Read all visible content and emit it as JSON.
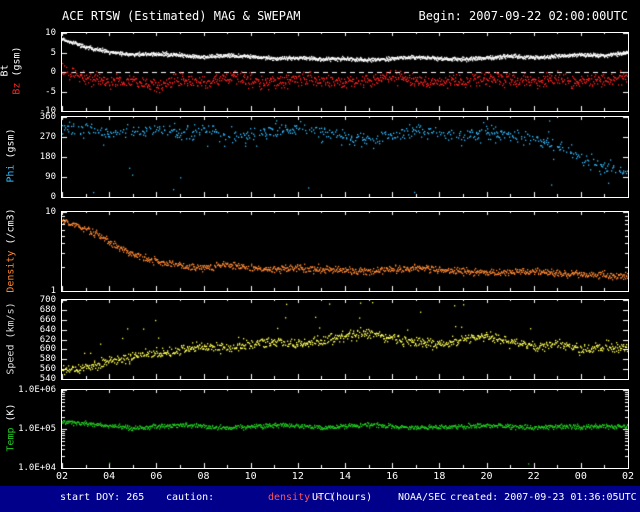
{
  "header": {
    "title": "ACE RTSW (Estimated) MAG & SWEPAM",
    "begin_label": "Begin: 2007-09-22 02:00:00UTC"
  },
  "footer": {
    "start_doy": "start DOY: 265",
    "caution_label": "caution:",
    "caution_value": "density < 1",
    "xaxis_title": "UTC(hours)",
    "agency": "NOAA/SEC",
    "created": "created: 2007-09-23 01:36:05UTC"
  },
  "colors": {
    "background": "#000000",
    "frame": "#ffffff",
    "footer_bar": "#00008b",
    "caution_text": "#ff5555",
    "bt": "#ffffff",
    "bz": "#ff2222",
    "phi": "#33bbff",
    "density": "#ff8833",
    "speed": "#ffff55",
    "temp": "#22cc22"
  },
  "chart_data": {
    "type": "scatter",
    "title": "ACE RTSW (Estimated) MAG & SWEPAM",
    "subtitle": "Begin: 2007-09-22 02:00:00UTC",
    "legend_position": "left-axis",
    "grid": false,
    "x": {
      "label": "UTC(hours)",
      "start_hour": 2,
      "end_hour": 26,
      "sample_step_hours": 1,
      "tick_labels": [
        "02",
        "04",
        "06",
        "08",
        "10",
        "12",
        "14",
        "16",
        "18",
        "20",
        "22",
        "00",
        "02"
      ]
    },
    "panels": [
      {
        "id": "mag",
        "label_lines": [
          [
            {
              "text": "Bt",
              "color": "#ffffff"
            }
          ],
          [
            {
              "text": "Bz",
              "color": "#ff2222"
            },
            {
              "text": " (gsm)",
              "color": "#ffffff"
            }
          ]
        ],
        "scale": "linear",
        "ylim": [
          -10,
          10
        ],
        "zero_line": true,
        "yticks": [
          {
            "v": 10,
            "label": "10"
          },
          {
            "v": 5,
            "label": "5"
          },
          {
            "v": 0,
            "label": "0"
          },
          {
            "v": -5,
            "label": "-5"
          },
          {
            "v": -10,
            "label": "-10"
          }
        ],
        "series": [
          {
            "name": "Bz",
            "color": "#ff2222",
            "jitter": 1.7,
            "density": 2,
            "fill": 0.9,
            "values": [
              0.5,
              -1.5,
              -2.5,
              -2.0,
              -3.0,
              -2.0,
              -2.5,
              -1.5,
              -2.0,
              -2.8,
              -1.5,
              -2.2,
              -2.6,
              -2.0,
              -1.2,
              -2.0,
              -2.6,
              -2.2,
              -1.6,
              -2.0,
              -2.2,
              -1.6,
              -2.4,
              -2.0,
              -1.2
            ]
          },
          {
            "name": "Bt",
            "color": "#ffffff",
            "jitter": 0.5,
            "density": 3,
            "fill": 1,
            "values": [
              8.5,
              6.5,
              5.2,
              4.6,
              4.8,
              4.4,
              4.0,
              4.4,
              4.0,
              3.6,
              3.8,
              3.4,
              3.6,
              3.2,
              3.6,
              4.0,
              3.6,
              3.4,
              3.8,
              4.2,
              3.8,
              4.2,
              4.6,
              4.4,
              5.2
            ]
          }
        ]
      },
      {
        "id": "phi",
        "label_lines": [
          [
            {
              "text": "Phi",
              "color": "#33bbff"
            },
            {
              "text": " (gsm)",
              "color": "#ffffff"
            }
          ]
        ],
        "scale": "linear",
        "ylim": [
          0,
          360
        ],
        "yticks": [
          {
            "v": 360,
            "label": "360"
          },
          {
            "v": 270,
            "label": "270"
          },
          {
            "v": 180,
            "label": "180"
          },
          {
            "v": 90,
            "label": "90"
          },
          {
            "v": 0,
            "label": "0"
          }
        ],
        "series": [
          {
            "name": "Phi",
            "color": "#33bbff",
            "jitter": 32,
            "density": 2,
            "fill": 0.55,
            "outlier_uniform": 0.04,
            "values": [
              315,
              305,
              290,
              298,
              306,
              292,
              300,
              278,
              288,
              300,
              308,
              288,
              272,
              258,
              282,
              300,
              290,
              272,
              295,
              282,
              262,
              232,
              175,
              135,
              120
            ]
          }
        ]
      },
      {
        "id": "density",
        "label_lines": [
          [
            {
              "text": "Density",
              "color": "#ff8833"
            },
            {
              "text": " (/cm3)",
              "color": "#ffffff"
            }
          ]
        ],
        "scale": "log",
        "ylim": [
          1,
          10
        ],
        "yticks": [
          {
            "v": 10,
            "label": "10"
          },
          {
            "v": 1,
            "label": "1"
          }
        ],
        "series": [
          {
            "name": "Density",
            "color": "#ff8833",
            "jitter_dex": 0.045,
            "density": 2,
            "fill": 0.95,
            "values": [
              8.0,
              6.0,
              4.2,
              2.9,
              2.4,
              2.1,
              2.0,
              2.2,
              2.0,
              1.9,
              2.0,
              1.9,
              1.85,
              1.8,
              1.9,
              2.0,
              1.9,
              1.8,
              1.75,
              1.8,
              1.8,
              1.7,
              1.65,
              1.6,
              1.55
            ]
          }
        ]
      },
      {
        "id": "speed",
        "label_lines": [
          [
            {
              "text": "Speed",
              "color": "#dddddd"
            },
            {
              "text": " (km/s)",
              "color": "#dddddd"
            }
          ]
        ],
        "scale": "linear",
        "ylim": [
          540,
          700
        ],
        "yticks": [
          {
            "v": 700,
            "label": "700"
          },
          {
            "v": 680,
            "label": "680"
          },
          {
            "v": 660,
            "label": "660"
          },
          {
            "v": 640,
            "label": "640"
          },
          {
            "v": 620,
            "label": "620"
          },
          {
            "v": 600,
            "label": "600"
          },
          {
            "v": 580,
            "label": "580"
          },
          {
            "v": 560,
            "label": "560"
          },
          {
            "v": 540,
            "label": "540"
          }
        ],
        "series": [
          {
            "name": "Speed",
            "color": "#ffff55",
            "jitter": 10,
            "density": 2,
            "fill": 0.9,
            "spike_prob": 0.02,
            "spike_amp": 55,
            "values": [
              556,
              564,
              576,
              586,
              592,
              600,
              606,
              602,
              612,
              618,
              612,
              620,
              628,
              634,
              622,
              616,
              612,
              620,
              628,
              616,
              606,
              612,
              602,
              606,
              602
            ]
          }
        ]
      },
      {
        "id": "temp",
        "label_lines": [
          [
            {
              "text": "Temp",
              "color": "#22cc22"
            },
            {
              "text": " (K)",
              "color": "#ffffff"
            }
          ]
        ],
        "scale": "log",
        "ylim": [
          10000,
          1000000
        ],
        "yticks": [
          {
            "v": 1000000,
            "label": "1.0E+06"
          },
          {
            "v": 100000,
            "label": "1.0E+05"
          },
          {
            "v": 10000,
            "label": "1.0E+04"
          }
        ],
        "series": [
          {
            "name": "Temp",
            "color": "#22cc22",
            "jitter_dex": 0.06,
            "density": 2,
            "fill": 0.95,
            "drop_prob": 0.002,
            "values": [
              160000,
              140000,
              125000,
              110000,
              120000,
              130000,
              120000,
              110000,
              120000,
              130000,
              125000,
              110000,
              120000,
              130000,
              120000,
              110000,
              115000,
              120000,
              130000,
              120000,
              110000,
              120000,
              115000,
              120000,
              120000
            ]
          }
        ]
      }
    ]
  }
}
